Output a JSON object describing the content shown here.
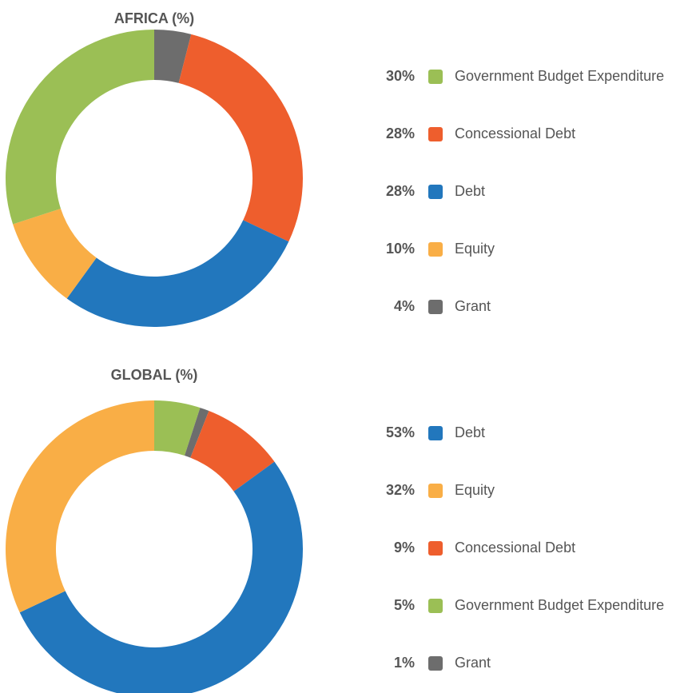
{
  "chart_data": [
    {
      "type": "pie",
      "title": "AFRICA (%)",
      "categories": [
        "Grant",
        "Concessional Debt",
        "Debt",
        "Equity",
        "Government Budget Expenditure"
      ],
      "values": [
        4,
        28,
        28,
        10,
        30
      ],
      "value_labels": [
        "4%",
        "28%",
        "28%",
        "10%",
        "30%"
      ],
      "colors": [
        "#6d6d6d",
        "#ee5e2d",
        "#2277bd",
        "#f9ae46",
        "#9bbf55"
      ]
    },
    {
      "type": "pie",
      "title": "GLOBAL (%)",
      "categories": [
        "Government Budget Expenditure",
        "Grant",
        "Concessional Debt",
        "Debt",
        "Equity"
      ],
      "values": [
        5,
        1,
        9,
        53,
        32
      ],
      "value_labels": [
        "5%",
        "1%",
        "9%",
        "53%",
        "32%"
      ],
      "colors": [
        "#9bbf55",
        "#6d6d6d",
        "#ee5e2d",
        "#2277bd",
        "#f9ae46"
      ]
    }
  ]
}
